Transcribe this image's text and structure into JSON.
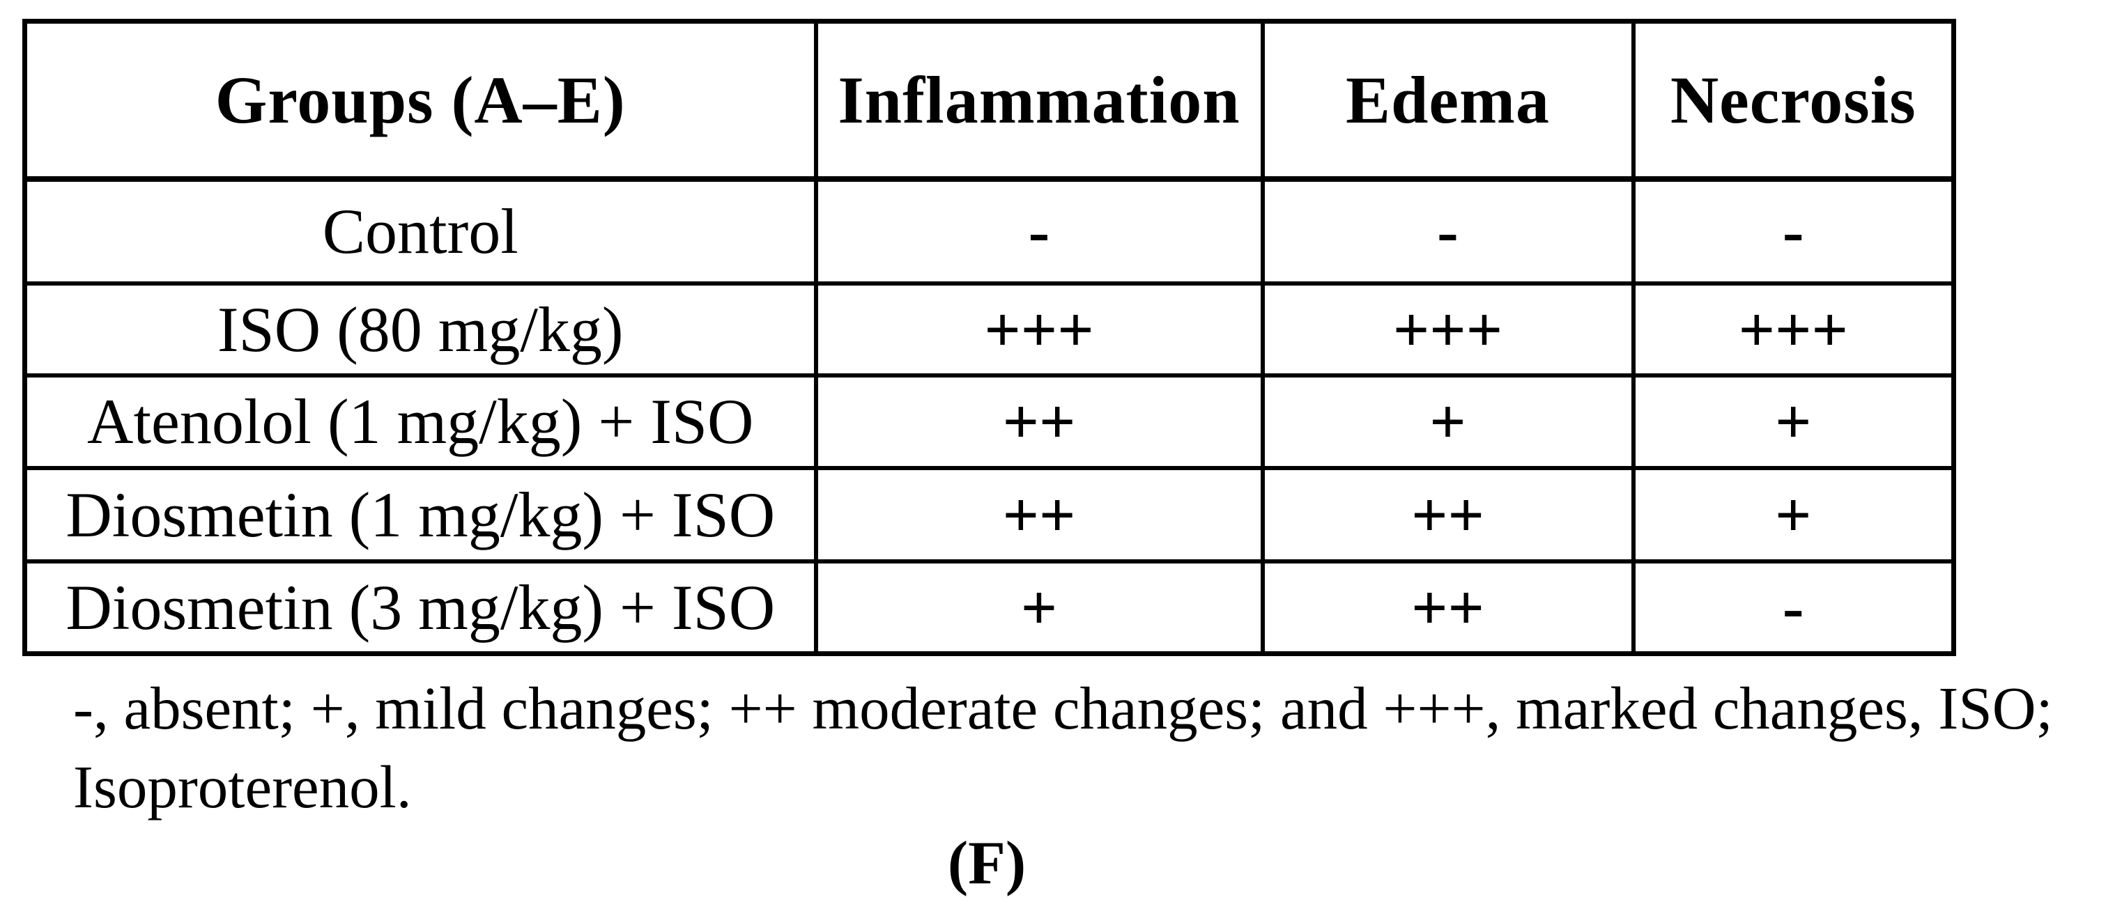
{
  "table": {
    "columns": [
      "Groups (A–E)",
      "Inflammation",
      "Edema",
      "Necrosis"
    ],
    "rows": [
      {
        "group": "Control",
        "inflammation": "-",
        "edema": "-",
        "necrosis": "-"
      },
      {
        "group": "ISO (80 mg/kg)",
        "inflammation": "+++",
        "edema": "+++",
        "necrosis": "+++"
      },
      {
        "group": "Atenolol (1 mg/kg) + ISO",
        "inflammation": "++",
        "edema": "+",
        "necrosis": "+"
      },
      {
        "group": "Diosmetin (1 mg/kg) + ISO",
        "inflammation": "++",
        "edema": "++",
        "necrosis": "+"
      },
      {
        "group": "Diosmetin (3 mg/kg) + ISO",
        "inflammation": "+",
        "edema": "++",
        "necrosis": "-"
      }
    ]
  },
  "footnote": {
    "line1": "-, absent; +, mild changes; ++ moderate changes; and +++, marked changes, ISO;",
    "line2": "Isoproterenol."
  },
  "panel_label": "(F)",
  "colors": {
    "text": "#000000",
    "background": "#ffffff",
    "border": "#000000"
  }
}
